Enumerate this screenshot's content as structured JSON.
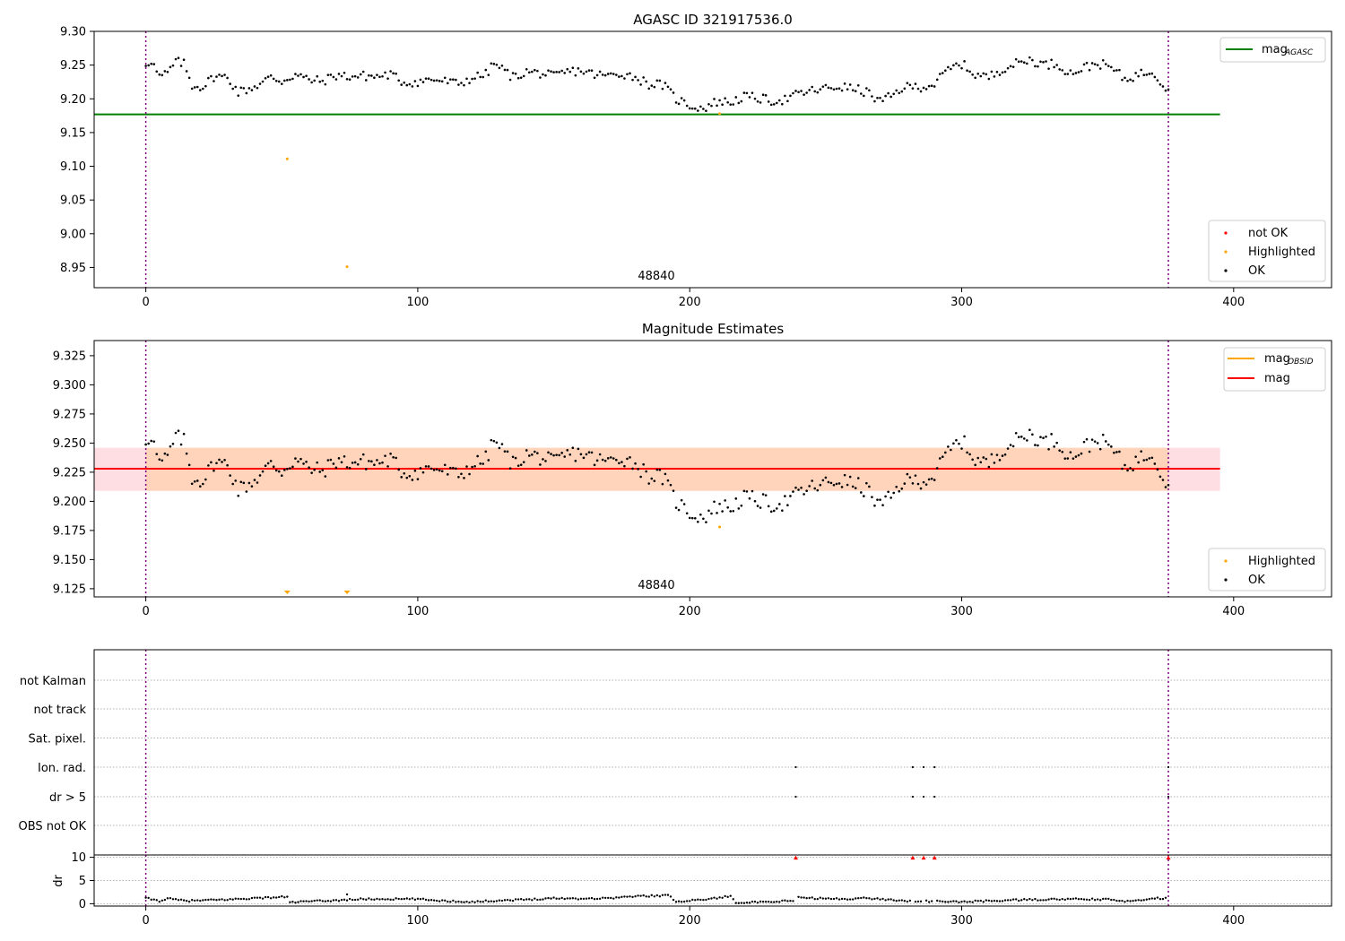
{
  "chart_data": [
    {
      "type": "scatter",
      "title": "AGASC ID 321917536.0",
      "xlabel": "",
      "ylabel": "",
      "xlim": [
        -19,
        436
      ],
      "ylim": [
        8.92,
        9.3
      ],
      "xticks": [
        0,
        100,
        200,
        300,
        400
      ],
      "yticks": [
        8.95,
        9.0,
        9.05,
        9.1,
        9.15,
        9.2,
        9.25,
        9.3
      ],
      "ytick_labels": [
        "8.95",
        "9.00",
        "9.05",
        "9.10",
        "9.15",
        "9.20",
        "9.25",
        "9.30"
      ],
      "vlines": [
        0,
        376
      ],
      "obsid_label": {
        "text": "48840",
        "x": 188,
        "y": 8.928
      },
      "mag_agasc": {
        "value": 9.177,
        "x0": -19,
        "x1": 395,
        "color": "#008000"
      },
      "highlighted_points": [
        [
          52,
          9.111
        ],
        [
          74,
          8.951
        ],
        [
          211,
          9.178
        ]
      ],
      "not_ok_points": [],
      "legend_top": [
        {
          "label": "mag",
          "sub": "AGASC",
          "color": "#008000"
        }
      ],
      "legend_bottom": [
        {
          "label": "not OK",
          "color": "#ff0000"
        },
        {
          "label": "Highlighted",
          "color": "#ffa500"
        },
        {
          "label": "OK",
          "color": "#000000"
        }
      ],
      "series_anchors": [
        [
          0,
          9.252
        ],
        [
          2,
          9.257
        ],
        [
          5,
          9.232
        ],
        [
          8,
          9.238
        ],
        [
          11,
          9.255
        ],
        [
          14,
          9.252
        ],
        [
          17,
          9.22
        ],
        [
          21,
          9.218
        ],
        [
          25,
          9.233
        ],
        [
          30,
          9.232
        ],
        [
          34,
          9.21
        ],
        [
          38,
          9.215
        ],
        [
          42,
          9.222
        ],
        [
          46,
          9.232
        ],
        [
          50,
          9.226
        ],
        [
          55,
          9.236
        ],
        [
          60,
          9.228
        ],
        [
          65,
          9.226
        ],
        [
          70,
          9.235
        ],
        [
          75,
          9.233
        ],
        [
          80,
          9.234
        ],
        [
          85,
          9.233
        ],
        [
          90,
          9.236
        ],
        [
          95,
          9.224
        ],
        [
          100,
          9.225
        ],
        [
          105,
          9.229
        ],
        [
          110,
          9.226
        ],
        [
          115,
          9.222
        ],
        [
          120,
          9.231
        ],
        [
          125,
          9.236
        ],
        [
          128,
          9.252
        ],
        [
          130,
          9.247
        ],
        [
          135,
          9.232
        ],
        [
          140,
          9.24
        ],
        [
          145,
          9.238
        ],
        [
          150,
          9.233
        ],
        [
          155,
          9.24
        ],
        [
          160,
          9.242
        ],
        [
          165,
          9.236
        ],
        [
          170,
          9.234
        ],
        [
          175,
          9.238
        ],
        [
          180,
          9.232
        ],
        [
          185,
          9.222
        ],
        [
          190,
          9.221
        ],
        [
          195,
          9.2
        ],
        [
          200,
          9.19
        ],
        [
          205,
          9.186
        ],
        [
          210,
          9.196
        ],
        [
          215,
          9.195
        ],
        [
          220,
          9.203
        ],
        [
          225,
          9.201
        ],
        [
          230,
          9.197
        ],
        [
          235,
          9.199
        ],
        [
          240,
          9.207
        ],
        [
          245,
          9.212
        ],
        [
          250,
          9.215
        ],
        [
          255,
          9.218
        ],
        [
          260,
          9.215
        ],
        [
          265,
          9.21
        ],
        [
          270,
          9.196
        ],
        [
          274,
          9.203
        ],
        [
          278,
          9.216
        ],
        [
          282,
          9.218
        ],
        [
          286,
          9.218
        ],
        [
          290,
          9.222
        ],
        [
          295,
          9.243
        ],
        [
          300,
          9.252
        ],
        [
          305,
          9.236
        ],
        [
          310,
          9.232
        ],
        [
          315,
          9.245
        ],
        [
          320,
          9.252
        ],
        [
          325,
          9.258
        ],
        [
          330,
          9.251
        ],
        [
          335,
          9.252
        ],
        [
          340,
          9.238
        ],
        [
          345,
          9.246
        ],
        [
          350,
          9.253
        ],
        [
          355,
          9.246
        ],
        [
          360,
          9.229
        ],
        [
          365,
          9.236
        ],
        [
          370,
          9.242
        ],
        [
          374,
          9.222
        ],
        [
          376,
          9.215
        ]
      ]
    },
    {
      "type": "scatter",
      "title": "Magnitude Estimates",
      "xlabel": "",
      "ylabel": "",
      "xlim": [
        -19,
        436
      ],
      "ylim": [
        9.118,
        9.338
      ],
      "xticks": [
        0,
        100,
        200,
        300,
        400
      ],
      "yticks": [
        9.125,
        9.15,
        9.175,
        9.2,
        9.225,
        9.25,
        9.275,
        9.3,
        9.325
      ],
      "ytick_labels": [
        "9.125",
        "9.150",
        "9.175",
        "9.200",
        "9.225",
        "9.250",
        "9.275",
        "9.300",
        "9.325"
      ],
      "vlines": [
        0,
        376
      ],
      "obsid_label": {
        "text": "48840",
        "x": 188,
        "y": 9.122
      },
      "mag": {
        "value": 9.228,
        "color": "#ff0000"
      },
      "mag_band": {
        "low": 9.209,
        "high": 9.246,
        "x0": -19,
        "x1": 395
      },
      "obsid_band": {
        "low": 9.209,
        "high": 9.246,
        "x0": 0,
        "x1": 376
      },
      "mag_obsid": {
        "value": 9.228,
        "x0": 0,
        "x1": 376,
        "color": "#ffa500"
      },
      "highlighted_points": [
        [
          211,
          9.178
        ]
      ],
      "offscale_markers": [
        52,
        74
      ],
      "legend_top": [
        {
          "label": "mag",
          "sub": "OBSID",
          "color": "#ffa500"
        },
        {
          "label": "mag",
          "sub": "",
          "color": "#ff0000"
        }
      ],
      "legend_bottom": [
        {
          "label": "Highlighted",
          "color": "#ffa500"
        },
        {
          "label": "OK",
          "color": "#000000"
        }
      ]
    },
    {
      "type": "scatter",
      "title": "",
      "xlabel": "",
      "xlim": [
        -19,
        436
      ],
      "xticks": [
        0,
        100,
        200,
        300,
        400
      ],
      "flag_rows": [
        "not Kalman",
        "not track",
        "Sat. pixel.",
        "Ion. rad.",
        "dr > 5",
        "OBS not OK"
      ],
      "flag_points": {
        "Ion. rad.": [
          239,
          282,
          286,
          290,
          376
        ],
        "dr > 5": [
          239,
          282,
          286,
          290,
          376
        ]
      },
      "vlines": [
        0,
        376
      ]
    },
    {
      "type": "scatter",
      "title": "",
      "xlabel": "",
      "ylabel": "dr",
      "xlim": [
        -19,
        436
      ],
      "ylim": [
        -0.5,
        10.5
      ],
      "xticks": [
        0,
        100,
        200,
        300,
        400
      ],
      "yticks": [
        0,
        5,
        10
      ],
      "ytick_labels": [
        "0",
        "5",
        "10"
      ],
      "vlines": [
        0,
        376
      ],
      "capped_points": [
        239,
        282,
        286,
        290,
        376
      ],
      "capped_color": "#ff0000",
      "series_anchors": [
        [
          0,
          1.2
        ],
        [
          5,
          0.6
        ],
        [
          8,
          1.1
        ],
        [
          15,
          0.6
        ],
        [
          20,
          0.7
        ],
        [
          30,
          0.9
        ],
        [
          40,
          1.2
        ],
        [
          45,
          1.3
        ],
        [
          52,
          1.5
        ],
        [
          53,
          0.3
        ],
        [
          60,
          0.5
        ],
        [
          70,
          0.7
        ],
        [
          75,
          0.9
        ],
        [
          80,
          1.0
        ],
        [
          100,
          1.0
        ],
        [
          110,
          0.6
        ],
        [
          120,
          0.4
        ],
        [
          130,
          0.7
        ],
        [
          140,
          0.9
        ],
        [
          150,
          1.2
        ],
        [
          160,
          1.1
        ],
        [
          170,
          1.2
        ],
        [
          180,
          1.6
        ],
        [
          192,
          1.8
        ],
        [
          195,
          0.5
        ],
        [
          205,
          0.9
        ],
        [
          215,
          1.6
        ],
        [
          217,
          0.3
        ],
        [
          230,
          0.3
        ],
        [
          239,
          0.8
        ],
        [
          240,
          1.3
        ],
        [
          255,
          1.0
        ],
        [
          265,
          1.2
        ],
        [
          280,
          0.6
        ],
        [
          300,
          0.4
        ],
        [
          320,
          0.8
        ],
        [
          340,
          1.0
        ],
        [
          355,
          0.9
        ],
        [
          360,
          0.4
        ],
        [
          370,
          1.2
        ],
        [
          376,
          1.1
        ]
      ]
    }
  ]
}
